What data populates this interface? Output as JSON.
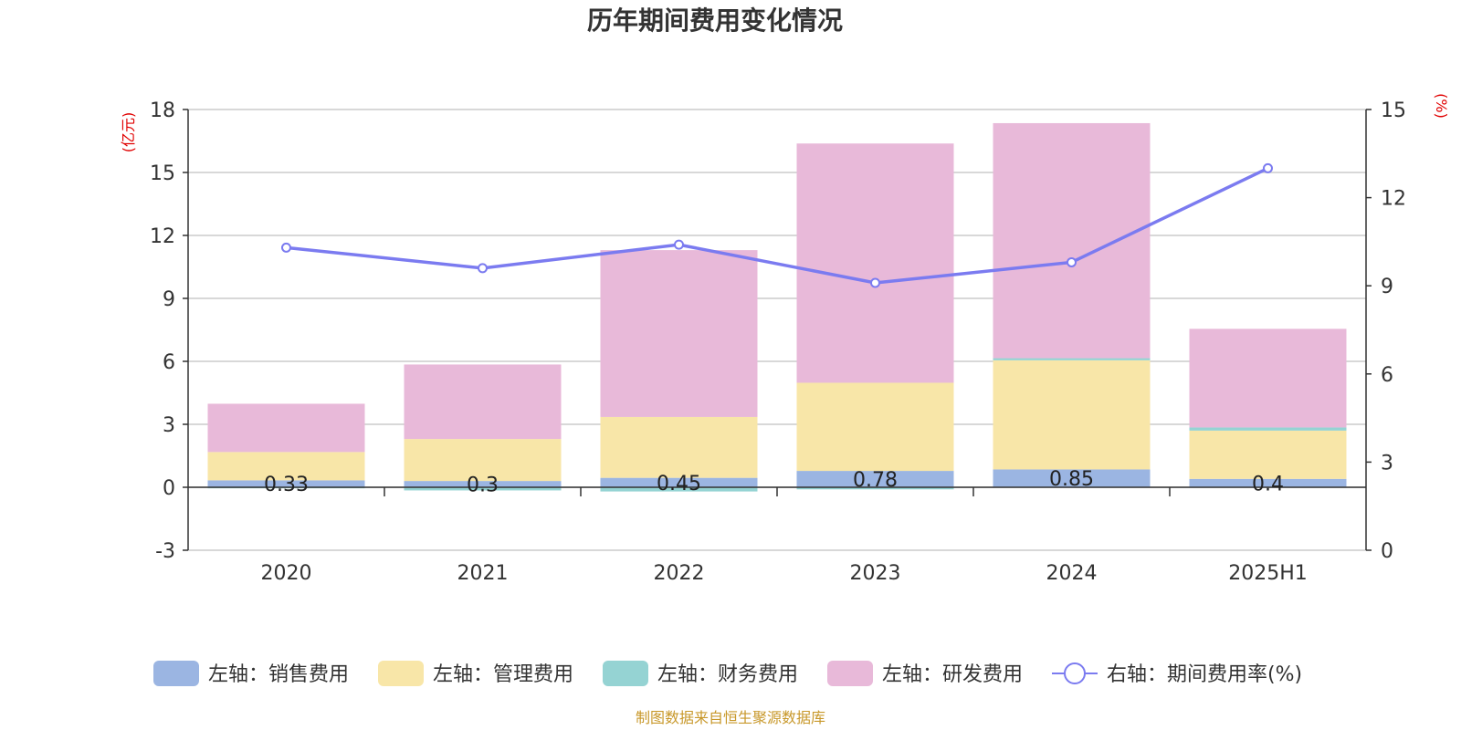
{
  "chart_data": {
    "type": "bar",
    "title": "历年期间费用变化情况",
    "categories": [
      "2020",
      "2021",
      "2022",
      "2023",
      "2024",
      "2025H1"
    ],
    "left_axis": {
      "unit": "(亿元)",
      "ylim": [
        -3,
        18
      ],
      "ticks": [
        -3,
        0,
        3,
        6,
        9,
        12,
        15,
        18
      ]
    },
    "right_axis": {
      "unit": "(%)",
      "ylim": [
        0,
        15
      ],
      "ticks": [
        0,
        3,
        6,
        9,
        12,
        15
      ]
    },
    "grid": true,
    "legend_position": "bottom",
    "series": [
      {
        "name": "左轴：销售费用",
        "type": "bar",
        "axis": "left",
        "color": "#9bb5e2",
        "values": [
          0.33,
          0.3,
          0.45,
          0.78,
          0.85,
          0.4
        ],
        "labels": [
          "0.33",
          "0.3",
          "0.45",
          "0.78",
          "0.85",
          "0.4"
        ]
      },
      {
        "name": "左轴：管理费用",
        "type": "bar",
        "axis": "left",
        "color": "#f8e6a8",
        "values": [
          1.35,
          2.0,
          2.9,
          4.2,
          5.2,
          2.3
        ]
      },
      {
        "name": "左轴：财务费用",
        "type": "bar",
        "axis": "left",
        "color": "#95d3d3",
        "values": [
          -0.05,
          -0.15,
          -0.2,
          -0.1,
          0.1,
          0.15
        ]
      },
      {
        "name": "左轴：研发费用",
        "type": "bar",
        "axis": "left",
        "color": "#e8b9d9",
        "values": [
          2.3,
          3.55,
          7.95,
          11.4,
          11.2,
          4.7
        ]
      },
      {
        "name": "右轴：期间费用率(%)",
        "type": "line",
        "axis": "right",
        "color": "#7b7bf0",
        "values": [
          10.3,
          9.6,
          10.4,
          9.1,
          9.8,
          13.0
        ]
      }
    ]
  },
  "source": "制图数据来自恒生聚源数据库"
}
